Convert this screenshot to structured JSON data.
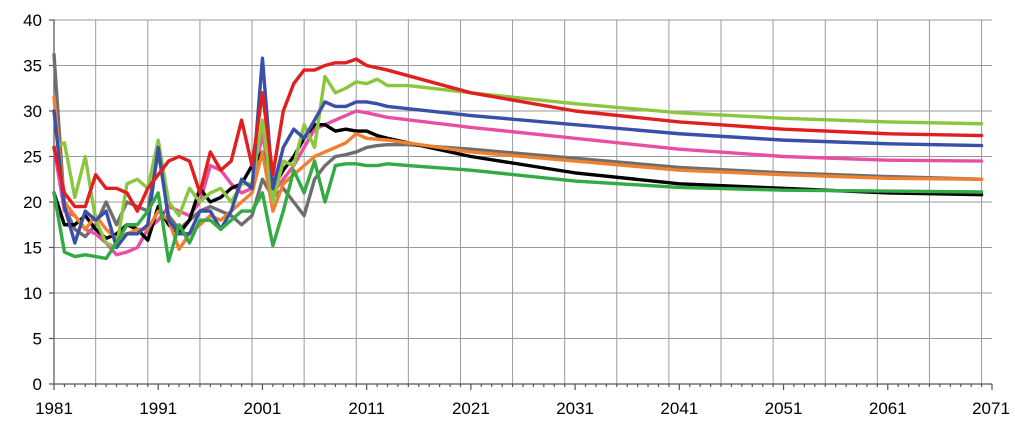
{
  "chart_data": {
    "type": "line",
    "title": "",
    "xlabel": "",
    "ylabel": "",
    "xlim": [
      1981,
      2071
    ],
    "ylim": [
      0,
      40
    ],
    "x_ticks": [
      1981,
      1991,
      2001,
      2011,
      2021,
      2031,
      2041,
      2051,
      2061,
      2071
    ],
    "y_ticks": [
      0,
      5,
      10,
      15,
      20,
      25,
      30,
      35,
      40
    ],
    "grid": true,
    "legend": "none",
    "series": [
      {
        "color": "#6e6e6e",
        "points": [
          [
            1981,
            36.2
          ],
          [
            1982,
            19.5
          ],
          [
            1983,
            17
          ],
          [
            1984,
            16.2
          ],
          [
            1985,
            17.5
          ],
          [
            1986,
            20
          ],
          [
            1987,
            17.5
          ],
          [
            1988,
            20
          ],
          [
            1989,
            19.5
          ],
          [
            1990,
            19
          ],
          [
            1991,
            25.5
          ],
          [
            1992,
            18.5
          ],
          [
            1993,
            17
          ],
          [
            1994,
            18
          ],
          [
            1995,
            19
          ],
          [
            1996,
            19.5
          ],
          [
            1997,
            19
          ],
          [
            1998,
            18.5
          ],
          [
            1999,
            17.5
          ],
          [
            2000,
            18.5
          ],
          [
            2001,
            22.5
          ],
          [
            2002,
            20.5
          ],
          [
            2003,
            21.5
          ],
          [
            2004,
            20
          ],
          [
            2005,
            18.5
          ],
          [
            2006,
            22.5
          ],
          [
            2007,
            24
          ],
          [
            2008,
            25
          ],
          [
            2009,
            25.2
          ],
          [
            2010,
            25.5
          ],
          [
            2011,
            26
          ],
          [
            2012,
            26.2
          ],
          [
            2013,
            26.3
          ],
          [
            2015,
            26.3
          ],
          [
            2021,
            25.8
          ],
          [
            2031,
            24.8
          ],
          [
            2041,
            23.8
          ],
          [
            2051,
            23.2
          ],
          [
            2061,
            22.8
          ],
          [
            2070,
            22.5
          ]
        ]
      },
      {
        "color": "#e84fa3",
        "points": [
          [
            1981,
            26
          ],
          [
            1982,
            19
          ],
          [
            1983,
            18.5
          ],
          [
            1984,
            17
          ],
          [
            1985,
            16.5
          ],
          [
            1986,
            15.5
          ],
          [
            1987,
            14.2
          ],
          [
            1988,
            14.5
          ],
          [
            1989,
            15
          ],
          [
            1990,
            17
          ],
          [
            1991,
            18
          ],
          [
            1992,
            19.5
          ],
          [
            1993,
            19
          ],
          [
            1994,
            18.5
          ],
          [
            1995,
            20
          ],
          [
            1996,
            24
          ],
          [
            1997,
            23.5
          ],
          [
            1998,
            22
          ],
          [
            1999,
            21
          ],
          [
            2000,
            21.5
          ],
          [
            2001,
            27.5
          ],
          [
            2002,
            21
          ],
          [
            2003,
            22.5
          ],
          [
            2004,
            24
          ],
          [
            2005,
            26
          ],
          [
            2006,
            28
          ],
          [
            2007,
            28.5
          ],
          [
            2008,
            29
          ],
          [
            2009,
            29.5
          ],
          [
            2010,
            30
          ],
          [
            2011,
            29.8
          ],
          [
            2013,
            29.3
          ],
          [
            2021,
            28.2
          ],
          [
            2031,
            27
          ],
          [
            2041,
            25.8
          ],
          [
            2051,
            25
          ],
          [
            2061,
            24.6
          ],
          [
            2070,
            24.5
          ]
        ]
      },
      {
        "color": "#000000",
        "points": [
          [
            1981,
            21
          ],
          [
            1982,
            17.5
          ],
          [
            1983,
            17.5
          ],
          [
            1984,
            18.5
          ],
          [
            1985,
            17
          ],
          [
            1986,
            16
          ],
          [
            1987,
            16.5
          ],
          [
            1988,
            17.5
          ],
          [
            1989,
            17
          ],
          [
            1990,
            15.8
          ],
          [
            1991,
            19.5
          ],
          [
            1992,
            17.5
          ],
          [
            1993,
            16.5
          ],
          [
            1994,
            18
          ],
          [
            1995,
            21.5
          ],
          [
            1996,
            20
          ],
          [
            1997,
            20.5
          ],
          [
            1998,
            21.5
          ],
          [
            1999,
            22
          ],
          [
            2000,
            24
          ],
          [
            2001,
            25.5
          ],
          [
            2002,
            21.5
          ],
          [
            2003,
            23.5
          ],
          [
            2004,
            25
          ],
          [
            2005,
            27
          ],
          [
            2006,
            28.5
          ],
          [
            2007,
            28.5
          ],
          [
            2008,
            27.8
          ],
          [
            2009,
            28
          ],
          [
            2010,
            27.8
          ],
          [
            2011,
            27.8
          ],
          [
            2012,
            27.3
          ],
          [
            2013,
            27
          ],
          [
            2021,
            25
          ],
          [
            2031,
            23.2
          ],
          [
            2041,
            22
          ],
          [
            2051,
            21.5
          ],
          [
            2061,
            21
          ],
          [
            2070,
            20.8
          ]
        ]
      },
      {
        "color": "#f08030",
        "points": [
          [
            1981,
            31.5
          ],
          [
            1982,
            20
          ],
          [
            1983,
            18.5
          ],
          [
            1984,
            17
          ],
          [
            1985,
            18.5
          ],
          [
            1986,
            17
          ],
          [
            1987,
            16
          ],
          [
            1988,
            16.5
          ],
          [
            1989,
            17
          ],
          [
            1990,
            17
          ],
          [
            1991,
            19
          ],
          [
            1992,
            18
          ],
          [
            1993,
            14.8
          ],
          [
            1994,
            16.5
          ],
          [
            1995,
            17.5
          ],
          [
            1996,
            18.5
          ],
          [
            1997,
            18
          ],
          [
            1998,
            19
          ],
          [
            1999,
            20
          ],
          [
            2000,
            21
          ],
          [
            2001,
            25.5
          ],
          [
            2002,
            19
          ],
          [
            2003,
            22
          ],
          [
            2004,
            23
          ],
          [
            2005,
            24
          ],
          [
            2006,
            25
          ],
          [
            2007,
            25.5
          ],
          [
            2008,
            26
          ],
          [
            2009,
            26.5
          ],
          [
            2010,
            27.5
          ],
          [
            2011,
            27
          ],
          [
            2013,
            26.8
          ],
          [
            2021,
            25.5
          ],
          [
            2031,
            24.5
          ],
          [
            2041,
            23.5
          ],
          [
            2051,
            23
          ],
          [
            2061,
            22.6
          ],
          [
            2070,
            22.5
          ]
        ]
      },
      {
        "color": "#8cc63f",
        "points": [
          [
            1981,
            26
          ],
          [
            1982,
            26.5
          ],
          [
            1983,
            20.5
          ],
          [
            1984,
            25
          ],
          [
            1985,
            18
          ],
          [
            1986,
            15.5
          ],
          [
            1987,
            15
          ],
          [
            1988,
            22
          ],
          [
            1989,
            22.5
          ],
          [
            1990,
            21.5
          ],
          [
            1991,
            26.8
          ],
          [
            1992,
            20
          ],
          [
            1993,
            18.5
          ],
          [
            1994,
            21.5
          ],
          [
            1995,
            20
          ],
          [
            1996,
            21
          ],
          [
            1997,
            21.5
          ],
          [
            1998,
            20
          ],
          [
            1999,
            22
          ],
          [
            2000,
            22
          ],
          [
            2001,
            29
          ],
          [
            2002,
            20
          ],
          [
            2003,
            24.5
          ],
          [
            2004,
            24
          ],
          [
            2005,
            28.5
          ],
          [
            2006,
            26
          ],
          [
            2007,
            33.8
          ],
          [
            2008,
            32
          ],
          [
            2009,
            32.5
          ],
          [
            2010,
            33.2
          ],
          [
            2011,
            33
          ],
          [
            2012,
            33.5
          ],
          [
            2013,
            32.8
          ],
          [
            2015,
            32.8
          ],
          [
            2021,
            32
          ],
          [
            2031,
            30.8
          ],
          [
            2041,
            29.8
          ],
          [
            2051,
            29.2
          ],
          [
            2061,
            28.8
          ],
          [
            2070,
            28.6
          ]
        ]
      },
      {
        "color": "#3a4fa8",
        "points": [
          [
            1981,
            30
          ],
          [
            1982,
            19.5
          ],
          [
            1983,
            15.5
          ],
          [
            1984,
            19
          ],
          [
            1985,
            18
          ],
          [
            1986,
            19
          ],
          [
            1987,
            15
          ],
          [
            1988,
            16.5
          ],
          [
            1989,
            16.5
          ],
          [
            1990,
            17.5
          ],
          [
            1991,
            26
          ],
          [
            1992,
            18
          ],
          [
            1993,
            16.5
          ],
          [
            1994,
            16.5
          ],
          [
            1995,
            19
          ],
          [
            1996,
            19
          ],
          [
            1997,
            17
          ],
          [
            1998,
            19
          ],
          [
            1999,
            22.5
          ],
          [
            2000,
            21.5
          ],
          [
            2001,
            35.8
          ],
          [
            2002,
            21.5
          ],
          [
            2003,
            26
          ],
          [
            2004,
            28
          ],
          [
            2005,
            27
          ],
          [
            2006,
            29
          ],
          [
            2007,
            31
          ],
          [
            2008,
            30.5
          ],
          [
            2009,
            30.5
          ],
          [
            2010,
            31
          ],
          [
            2011,
            31
          ],
          [
            2012,
            30.8
          ],
          [
            2013,
            30.5
          ],
          [
            2021,
            29.5
          ],
          [
            2031,
            28.5
          ],
          [
            2041,
            27.5
          ],
          [
            2051,
            26.8
          ],
          [
            2061,
            26.4
          ],
          [
            2070,
            26.2
          ]
        ]
      },
      {
        "color": "#e02020",
        "points": [
          [
            1981,
            26
          ],
          [
            1982,
            21
          ],
          [
            1983,
            19.5
          ],
          [
            1984,
            19.5
          ],
          [
            1985,
            23
          ],
          [
            1986,
            21.5
          ],
          [
            1987,
            21.5
          ],
          [
            1988,
            21
          ],
          [
            1989,
            19
          ],
          [
            1990,
            21.5
          ],
          [
            1991,
            23
          ],
          [
            1992,
            24.5
          ],
          [
            1993,
            25
          ],
          [
            1994,
            24.5
          ],
          [
            1995,
            21
          ],
          [
            1996,
            25.5
          ],
          [
            1997,
            23.5
          ],
          [
            1998,
            24.5
          ],
          [
            1999,
            29
          ],
          [
            2000,
            24
          ],
          [
            2001,
            32
          ],
          [
            2002,
            23
          ],
          [
            2003,
            30
          ],
          [
            2004,
            33
          ],
          [
            2005,
            34.5
          ],
          [
            2006,
            34.5
          ],
          [
            2007,
            35
          ],
          [
            2008,
            35.3
          ],
          [
            2009,
            35.3
          ],
          [
            2010,
            35.7
          ],
          [
            2011,
            35
          ],
          [
            2013,
            34.5
          ],
          [
            2021,
            32
          ],
          [
            2031,
            30
          ],
          [
            2041,
            28.8
          ],
          [
            2051,
            28
          ],
          [
            2061,
            27.5
          ],
          [
            2070,
            27.3
          ]
        ]
      },
      {
        "color": "#33aa44",
        "points": [
          [
            1981,
            21
          ],
          [
            1982,
            14.5
          ],
          [
            1983,
            14
          ],
          [
            1984,
            14.2
          ],
          [
            1985,
            14
          ],
          [
            1986,
            13.8
          ],
          [
            1987,
            15.5
          ],
          [
            1988,
            17.5
          ],
          [
            1989,
            17.5
          ],
          [
            1990,
            19
          ],
          [
            1991,
            21
          ],
          [
            1992,
            13.5
          ],
          [
            1993,
            17.5
          ],
          [
            1994,
            15.5
          ],
          [
            1995,
            18
          ],
          [
            1996,
            18
          ],
          [
            1997,
            17
          ],
          [
            1998,
            18
          ],
          [
            1999,
            19
          ],
          [
            2000,
            19
          ],
          [
            2001,
            21
          ],
          [
            2002,
            15.2
          ],
          [
            2003,
            19
          ],
          [
            2004,
            23.5
          ],
          [
            2005,
            21
          ],
          [
            2006,
            24.5
          ],
          [
            2007,
            20
          ],
          [
            2008,
            24
          ],
          [
            2009,
            24.2
          ],
          [
            2010,
            24.2
          ],
          [
            2011,
            24
          ],
          [
            2012,
            24
          ],
          [
            2013,
            24.2
          ],
          [
            2015,
            24
          ],
          [
            2021,
            23.5
          ],
          [
            2031,
            22.3
          ],
          [
            2041,
            21.6
          ],
          [
            2051,
            21.3
          ],
          [
            2061,
            21.2
          ],
          [
            2070,
            21.1
          ]
        ]
      }
    ]
  }
}
